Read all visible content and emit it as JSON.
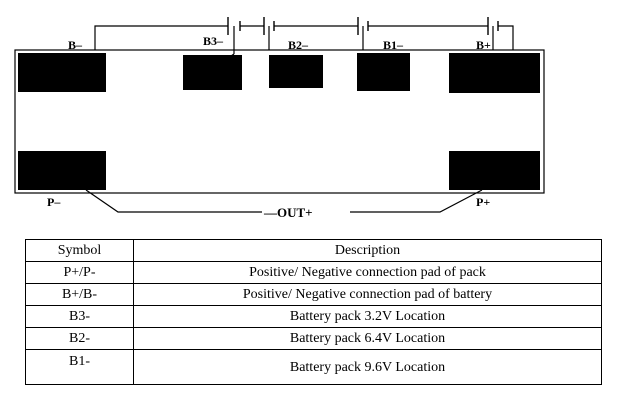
{
  "diagram": {
    "labels": {
      "b_minus": "B–",
      "b3_minus": "B3–",
      "b2_minus": "B2–",
      "b1_minus": "B1–",
      "b_plus": "B+",
      "p_minus": "P–",
      "p_plus": "P+",
      "out": "—OUT+"
    }
  },
  "table": {
    "headers": [
      "Symbol",
      "Description"
    ],
    "rows": [
      {
        "symbol": "P+/P-",
        "description": "Positive/ Negative connection pad of pack"
      },
      {
        "symbol": "B+/B-",
        "description": "Positive/ Negative connection pad of battery"
      },
      {
        "symbol": "B3-",
        "description": "Battery pack 3.2V Location"
      },
      {
        "symbol": "B2-",
        "description": "Battery pack 6.4V Location"
      },
      {
        "symbol": "B1-",
        "description": "Battery pack 9.6V Location"
      }
    ]
  }
}
